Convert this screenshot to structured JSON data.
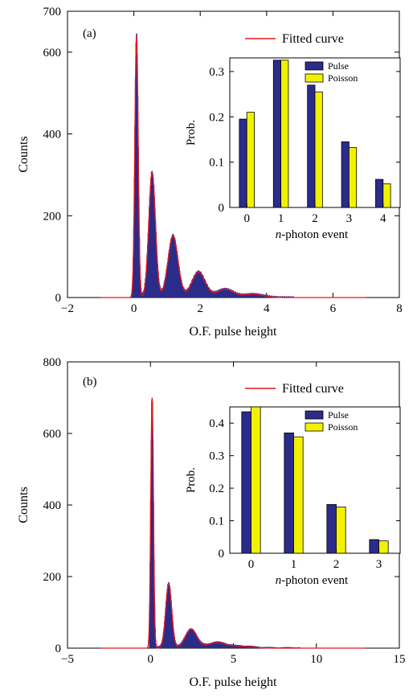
{
  "chart_data": [
    {
      "type": "histogram",
      "panel_label": "(a)",
      "xlabel": "O.F. pulse height",
      "ylabel": "Counts",
      "xlim": [
        -2,
        8
      ],
      "ylim": [
        0,
        700
      ],
      "xticks": [
        "−2",
        "0",
        "2",
        "4",
        "6",
        "8"
      ],
      "yticks": [
        "0",
        "200",
        "400",
        "600",
        "700"
      ],
      "legend": {
        "label": "Fitted curve",
        "color": "#e8161b",
        "placement": "top-right"
      },
      "histogram_color": "#2b2b8a",
      "peaks": [
        {
          "x": 0.08,
          "y": 640,
          "sigma": 0.05
        },
        {
          "x": 0.55,
          "y": 305,
          "sigma": 0.1
        },
        {
          "x": 1.18,
          "y": 150,
          "sigma": 0.15
        },
        {
          "x": 1.95,
          "y": 62,
          "sigma": 0.2
        },
        {
          "x": 2.75,
          "y": 20,
          "sigma": 0.25
        },
        {
          "x": 3.6,
          "y": 8,
          "sigma": 0.3
        }
      ],
      "inset": {
        "type": "bar",
        "xlabel": "n-photon event",
        "ylabel": "Prob.",
        "categories": [
          "0",
          "1",
          "2",
          "3",
          "4"
        ],
        "ylim": [
          0,
          0.33
        ],
        "yticks": [
          "0",
          "0.1",
          "0.2",
          "0.3"
        ],
        "series": [
          {
            "name": "Pulse",
            "color": "#2b2b8a",
            "values": [
              0.195,
              0.325,
              0.27,
              0.145,
              0.062
            ]
          },
          {
            "name": "Poisson",
            "color": "#f2f200",
            "values": [
              0.21,
              0.325,
              0.255,
              0.132,
              0.052
            ]
          }
        ]
      }
    },
    {
      "type": "histogram",
      "panel_label": "(b)",
      "xlabel": "O.F. pulse height",
      "ylabel": "Counts",
      "xlim": [
        -5,
        15
      ],
      "ylim": [
        0,
        800
      ],
      "xticks": [
        "−5",
        "0",
        "5",
        "10",
        "15"
      ],
      "yticks": [
        "0",
        "200",
        "400",
        "600",
        "800"
      ],
      "legend": {
        "label": "Fitted curve",
        "color": "#e8161b",
        "placement": "top-right"
      },
      "histogram_color": "#2b2b8a",
      "peaks": [
        {
          "x": 0.1,
          "y": 700,
          "sigma": 0.08
        },
        {
          "x": 1.1,
          "y": 180,
          "sigma": 0.18
        },
        {
          "x": 2.45,
          "y": 52,
          "sigma": 0.35
        },
        {
          "x": 4.0,
          "y": 15,
          "sigma": 0.55
        },
        {
          "x": 5.5,
          "y": 5,
          "sigma": 0.7
        }
      ],
      "inset": {
        "type": "bar",
        "xlabel": "n-photon event",
        "ylabel": "Prob.",
        "categories": [
          "0",
          "1",
          "2",
          "3"
        ],
        "ylim": [
          0,
          0.45
        ],
        "yticks": [
          "0",
          "0.1",
          "0.2",
          "0.3",
          "0.4"
        ],
        "series": [
          {
            "name": "Pulse",
            "color": "#2b2b8a",
            "values": [
              0.435,
              0.37,
              0.15,
              0.042
            ]
          },
          {
            "name": "Poisson",
            "color": "#f2f200",
            "values": [
              0.45,
              0.358,
              0.142,
              0.038
            ]
          }
        ]
      }
    }
  ]
}
